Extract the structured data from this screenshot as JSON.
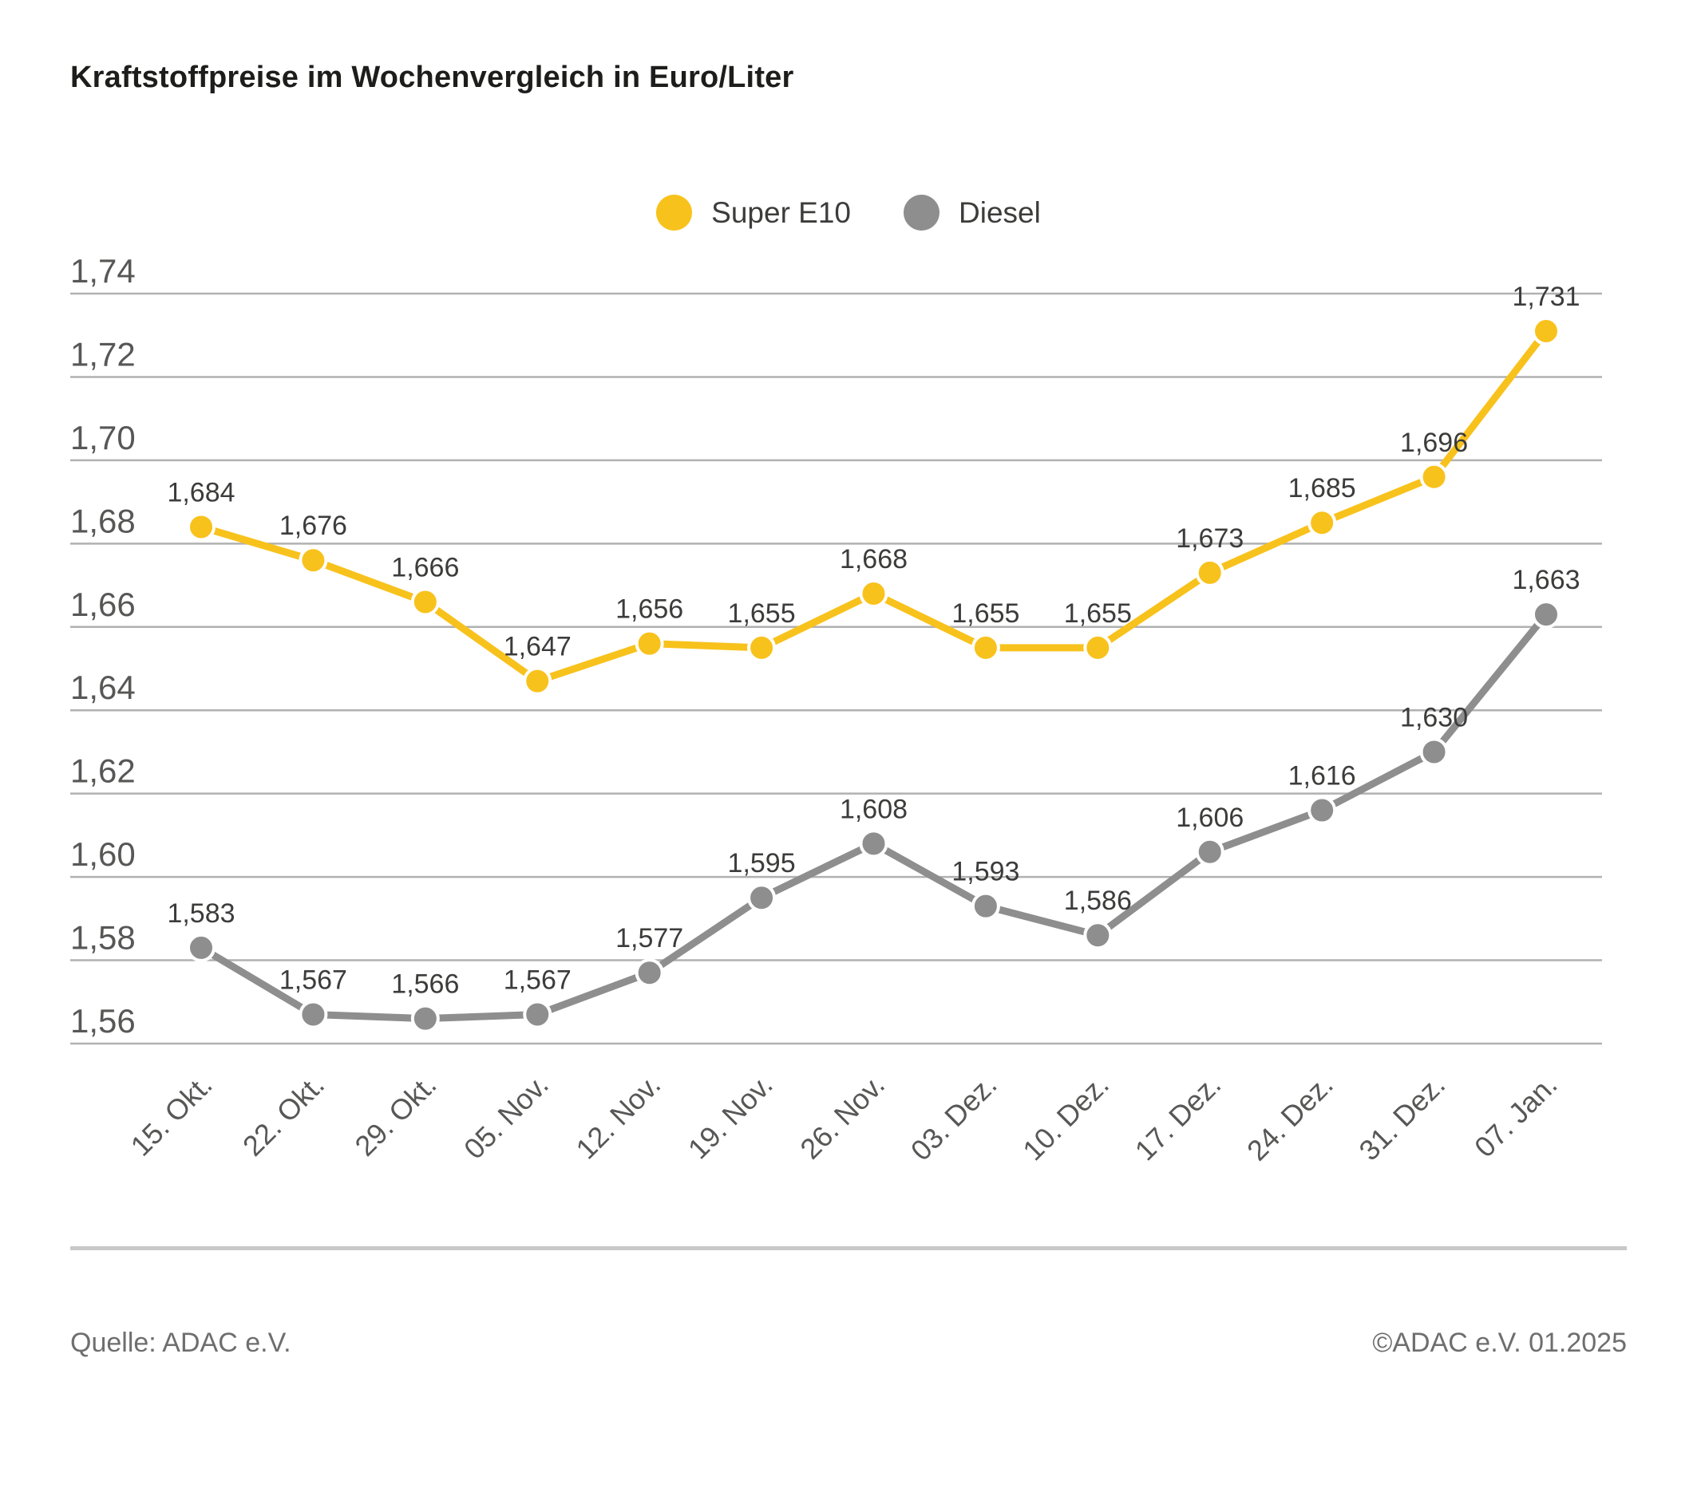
{
  "title": "Kraftstoffpreise im Wochenvergleich in Euro/Liter",
  "chart_data": {
    "type": "line",
    "categories": [
      "15. Okt.",
      "22. Okt.",
      "29. Okt.",
      "05. Nov.",
      "12. Nov.",
      "19. Nov.",
      "26. Nov.",
      "03. Dez.",
      "10. Dez.",
      "17. Dez.",
      "24. Dez.",
      "31. Dez.",
      "07. Jan."
    ],
    "series": [
      {
        "name": "Super E10",
        "color": "#F8C21C",
        "values": [
          1.684,
          1.676,
          1.666,
          1.647,
          1.656,
          1.655,
          1.668,
          1.655,
          1.655,
          1.673,
          1.685,
          1.696,
          1.731
        ]
      },
      {
        "name": "Diesel",
        "color": "#8E8E8E",
        "values": [
          1.583,
          1.567,
          1.566,
          1.567,
          1.577,
          1.595,
          1.608,
          1.593,
          1.586,
          1.606,
          1.616,
          1.63,
          1.663
        ]
      }
    ],
    "ylabel": "Euro/Liter",
    "ylim": [
      1.56,
      1.74
    ],
    "ytick_step": 0.02,
    "ytick_labels": [
      "1,74",
      "1,72",
      "1,70",
      "1,68",
      "1,66",
      "1,64",
      "1,62",
      "1,60",
      "1,58",
      "1,56"
    ],
    "grid": "horizontal",
    "legend_position": "top-center",
    "decimal_separator": ",",
    "value_labels": true,
    "colors": {
      "gridline": "#b1b1b1",
      "tick_text": "#575756",
      "value_label_text": "#3c3c3b",
      "title_text": "#1d1d1b",
      "footer_text": "#6e6e6e"
    }
  },
  "footer": {
    "source": "Quelle: ADAC e.V.",
    "copyright": "©ADAC e.V. 01.2025"
  }
}
